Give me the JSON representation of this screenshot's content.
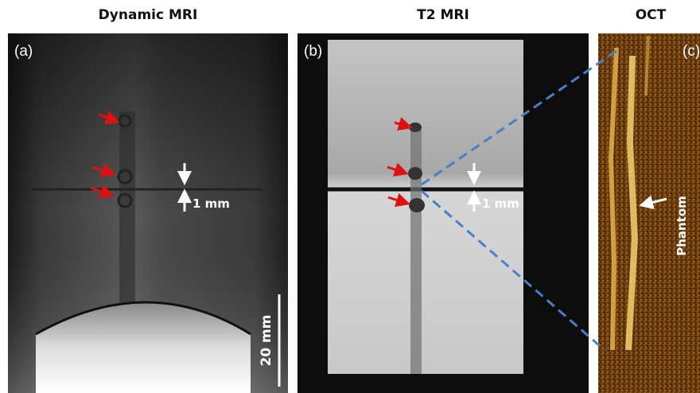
{
  "panels": [
    {
      "title": "Dynamic MRI",
      "label": "(a)",
      "annotations": [
        "1 mm",
        "20 mm"
      ]
    },
    {
      "title": "T2 MRI",
      "label": "(b)",
      "annotations": [
        "1 mm"
      ]
    },
    {
      "title": "OCT",
      "label": "(c)",
      "annotations": [
        "Phantom"
      ]
    }
  ]
}
